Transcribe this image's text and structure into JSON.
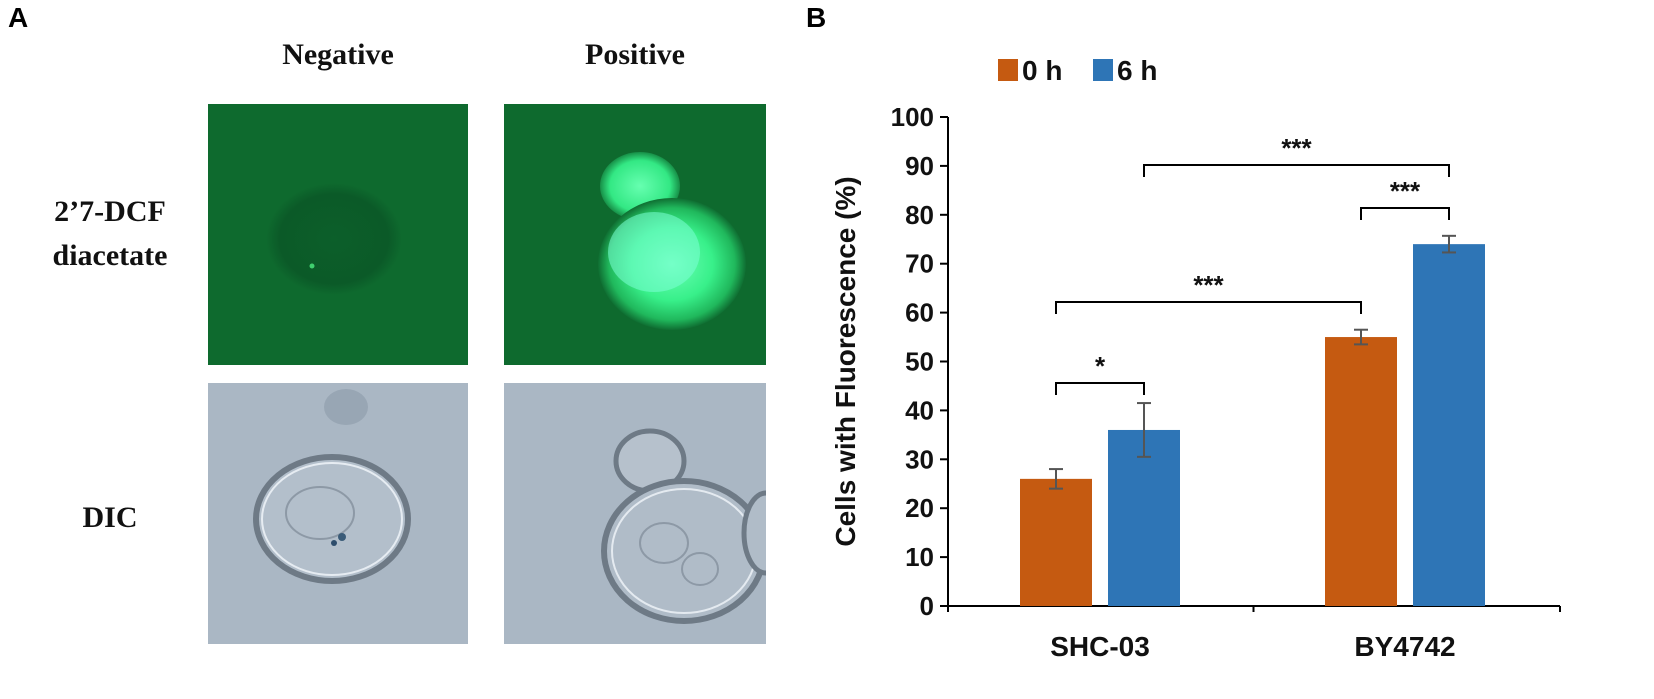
{
  "panelA": {
    "letter": "A",
    "columns": [
      "Negative",
      "Positive"
    ],
    "rows": [
      {
        "lines": [
          "2’7-DCF",
          "diacetate"
        ]
      },
      {
        "lines": [
          "DIC"
        ]
      }
    ]
  },
  "colors": {
    "bar_0h": "#C55A11",
    "bar_6h": "#2E75B6",
    "fluor_bg": "#0E6A2E",
    "fluor_cell": "#3CF58E",
    "dic_bg": "#AAB7C4"
  },
  "chart_data": {
    "letter": "B",
    "type": "bar",
    "categories": [
      "SHC-03",
      "BY4742"
    ],
    "series": [
      {
        "name": "0 h",
        "values": [
          26,
          55
        ],
        "errors": [
          2,
          1.5
        ]
      },
      {
        "name": "6 h",
        "values": [
          36,
          74
        ],
        "errors": [
          5.5,
          1.7
        ]
      }
    ],
    "ylabel": "Cells with Fluorescence  (%)",
    "ylim": [
      0,
      100
    ],
    "yticks": [
      0,
      10,
      20,
      30,
      40,
      50,
      60,
      70,
      80,
      90,
      100
    ],
    "grid": false,
    "legend": "top-left",
    "significance": [
      {
        "label": "*",
        "from": [
          0,
          0
        ],
        "to": [
          0,
          1
        ]
      },
      {
        "label": "***",
        "from": [
          0,
          0
        ],
        "to": [
          1,
          0
        ]
      },
      {
        "label": "***",
        "from": [
          1,
          0
        ],
        "to": [
          1,
          1
        ]
      },
      {
        "label": "***",
        "from": [
          0,
          1
        ],
        "to": [
          1,
          1
        ]
      }
    ]
  }
}
